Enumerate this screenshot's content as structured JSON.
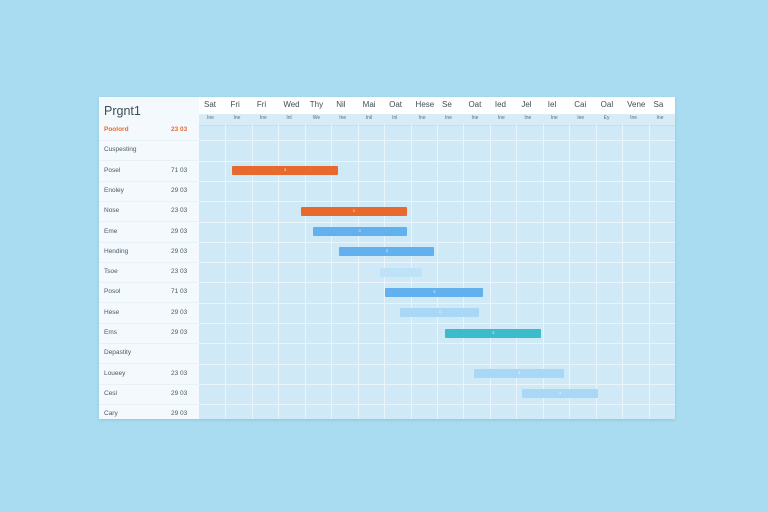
{
  "project": {
    "title": "Prgnt1"
  },
  "columns": [
    {
      "label": "Sat",
      "sub": "Ine"
    },
    {
      "label": "Fri",
      "sub": "Ine"
    },
    {
      "label": "Fri",
      "sub": "Ine"
    },
    {
      "label": "Wed",
      "sub": "Inl"
    },
    {
      "label": "Thy",
      "sub": "We"
    },
    {
      "label": "Nil",
      "sub": "Ine"
    },
    {
      "label": "Mai",
      "sub": "Inil"
    },
    {
      "label": "Oat",
      "sub": "Inl"
    },
    {
      "label": "Hese",
      "sub": "Ine"
    },
    {
      "label": "Se",
      "sub": "Ine"
    },
    {
      "label": "Oat",
      "sub": "Ine"
    },
    {
      "label": "Ied",
      "sub": "Ine"
    },
    {
      "label": "Jel",
      "sub": "Ine"
    },
    {
      "label": "Iel",
      "sub": "Ine"
    },
    {
      "label": "Cai",
      "sub": "Iee"
    },
    {
      "label": "Oal",
      "sub": "Ey"
    },
    {
      "label": "Vene",
      "sub": "Ine"
    },
    {
      "label": "Sa",
      "sub": "Ine"
    }
  ],
  "tasks": [
    {
      "name": "Poolord",
      "date": "23 03",
      "active": true
    },
    {
      "name": "Cuspesting",
      "date": ""
    },
    {
      "name": "Posel",
      "date": "71 03"
    },
    {
      "name": "Enoley",
      "date": "29 03"
    },
    {
      "name": "Nose",
      "date": "23 03"
    },
    {
      "name": "Eme",
      "date": "29 03"
    },
    {
      "name": "Hending",
      "date": "29 03"
    },
    {
      "name": "Tsoe",
      "date": "23 03"
    },
    {
      "name": "Posol",
      "date": "71 03"
    },
    {
      "name": "Hese",
      "date": "29 03"
    },
    {
      "name": "Ems",
      "date": "29 03"
    },
    {
      "name": "Depastity",
      "date": ""
    },
    {
      "name": "Loueey",
      "date": "23 03"
    },
    {
      "name": "Cesl",
      "date": "29 03"
    },
    {
      "name": "Cary",
      "date": "29 03"
    }
  ],
  "bars": [
    {
      "row": 2,
      "start": 1.25,
      "span": 4.0,
      "color": "#e8692d",
      "label": "3"
    },
    {
      "row": 4,
      "start": 3.85,
      "span": 4.0,
      "color": "#e8692d",
      "label": "3"
    },
    {
      "row": 5,
      "start": 4.3,
      "span": 3.55,
      "color": "#62b0ee",
      "label": "3"
    },
    {
      "row": 6,
      "start": 5.3,
      "span": 3.6,
      "color": "#62b0ee",
      "label": "3"
    },
    {
      "row": 7,
      "start": 6.85,
      "span": 1.6,
      "color": "#bfe2f6",
      "label": ""
    },
    {
      "row": 8,
      "start": 7.05,
      "span": 3.7,
      "color": "#62b0ee",
      "label": "3"
    },
    {
      "row": 9,
      "start": 7.6,
      "span": 3.0,
      "color": "#a9d8f6",
      "label": "3"
    },
    {
      "row": 10,
      "start": 9.3,
      "span": 3.65,
      "color": "#3cbccb",
      "label": "3"
    },
    {
      "row": 12,
      "start": 10.4,
      "span": 3.4,
      "color": "#a9d8f6",
      "label": "3"
    },
    {
      "row": 13,
      "start": 12.2,
      "span": 2.9,
      "color": "#a9d8f6",
      "label": "3"
    }
  ]
}
